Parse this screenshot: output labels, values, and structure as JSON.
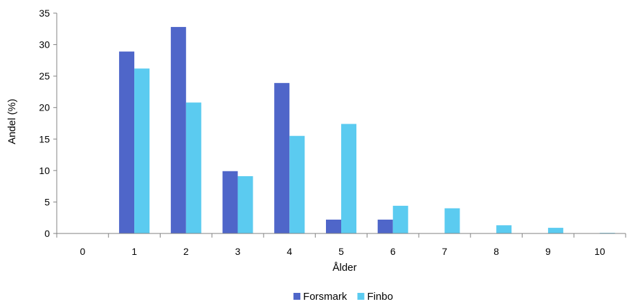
{
  "chart_data": {
    "type": "bar",
    "xlabel": "Ålder",
    "ylabel": "Andel (%)",
    "categories": [
      "0",
      "1",
      "2",
      "3",
      "4",
      "5",
      "6",
      "7",
      "8",
      "9",
      "10"
    ],
    "ylim": [
      0,
      35
    ],
    "yticks": [
      0,
      5,
      10,
      15,
      20,
      25,
      30,
      35
    ],
    "grid": false,
    "legend_position": "bottom",
    "series": [
      {
        "name": "Forsmark",
        "color": "#4f66c9",
        "values": [
          0,
          28.9,
          32.8,
          9.9,
          23.9,
          2.2,
          2.2,
          0,
          0,
          0,
          0
        ]
      },
      {
        "name": "Finbo",
        "color": "#5bcbf0",
        "values": [
          0,
          26.2,
          20.8,
          9.1,
          15.5,
          17.4,
          4.4,
          4.0,
          1.3,
          0.9,
          0.1
        ]
      }
    ]
  }
}
